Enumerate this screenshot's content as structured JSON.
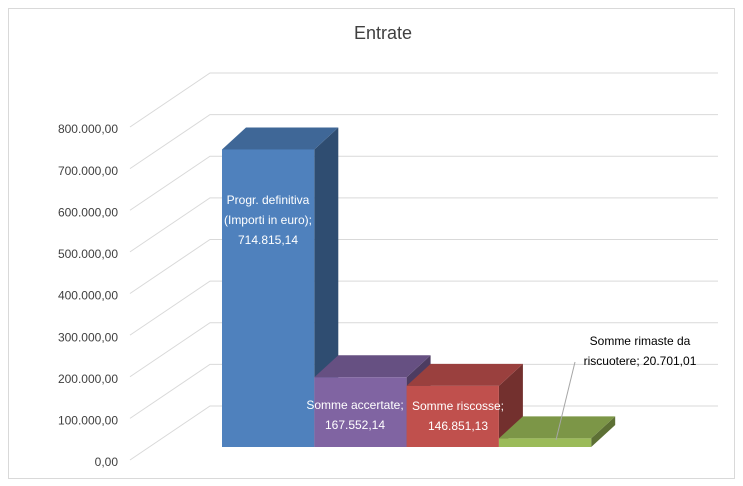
{
  "chart_data": {
    "type": "bar3d",
    "title": "Entrate",
    "value_labels": [
      "Progr. definitiva (Importi in euro); 714.815,14",
      "Somme accertate; 167.552,14",
      "Somme riscosse; 146.851,13",
      "Somme rimaste da riscuotere; 20.701,01"
    ],
    "values": [
      714815.14,
      167552.14,
      146851.13,
      20701.01
    ],
    "colors": [
      "#4f81bd",
      "#8064a2",
      "#c0504d",
      "#9bbb59"
    ],
    "ylim": [
      0,
      800000
    ],
    "yticks": [
      {
        "value": 0,
        "label": "0,00"
      },
      {
        "value": 100000,
        "label": "100.000,00"
      },
      {
        "value": 200000,
        "label": "200.000,00"
      },
      {
        "value": 300000,
        "label": "300.000,00"
      },
      {
        "value": 400000,
        "label": "400.000,00"
      },
      {
        "value": 500000,
        "label": "500.000,00"
      },
      {
        "value": 600000,
        "label": "600.000,00"
      },
      {
        "value": 700000,
        "label": "700.000,00"
      },
      {
        "value": 800000,
        "label": "800.000,00"
      }
    ],
    "grid": true
  }
}
